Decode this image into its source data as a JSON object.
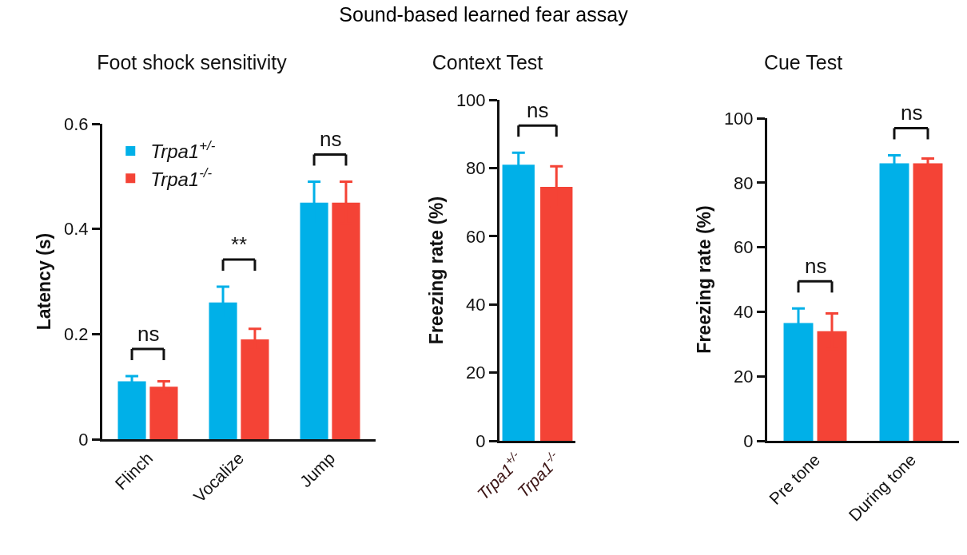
{
  "chart_data": [
    {
      "type": "bar",
      "title": "Sound-based learned fear assay",
      "subtitle": "Foot shock sensitivity",
      "ylabel": "Latency (s)",
      "categories": [
        "Flinch",
        "Vocalize",
        "Jump"
      ],
      "series": [
        {
          "name": "Trpa1$^{+/-}$",
          "color": "#00b0e8",
          "values": [
            0.11,
            0.26,
            0.45
          ],
          "errors": [
            0.01,
            0.03,
            0.04
          ]
        },
        {
          "name": "Trpa1$^{-/-}$",
          "color": "#f44336",
          "values": [
            0.1,
            0.19,
            0.45
          ],
          "errors": [
            0.01,
            0.02,
            0.04
          ]
        }
      ],
      "ylim": [
        0,
        0.6
      ],
      "yticks": [
        0,
        0.2,
        0.4,
        0.6
      ],
      "grid": false,
      "legend": "top left",
      "annotations": [
        "ns",
        "**",
        "ns"
      ]
    },
    {
      "type": "bar",
      "title": "Context Test",
      "ylabel": "Freezing rate (%)",
      "categories": [
        "Trpa1$^{+/-}$",
        "Trpa1$^{-/-}$"
      ],
      "values": [
        81,
        74.5
      ],
      "errors": [
        3.5,
        6
      ],
      "colors": [
        "#00b0e8",
        "#f44336"
      ],
      "ylim": [
        0,
        100
      ],
      "yticks": [
        0,
        20,
        40,
        60,
        80,
        100
      ],
      "grid": false,
      "annotations": [
        "ns"
      ]
    },
    {
      "type": "bar",
      "title": "Cue Test",
      "ylabel": "Freezing rate (%)",
      "categories": [
        "Pre tone",
        "During tone"
      ],
      "series": [
        {
          "color": "#00b0e8",
          "values": [
            36.5,
            86
          ],
          "errors": [
            4.5,
            2.5
          ]
        },
        {
          "color": "#f44336",
          "values": [
            34,
            86
          ],
          "errors": [
            5.5,
            1.5
          ]
        }
      ],
      "ylim": [
        0,
        100
      ],
      "yticks": [
        0,
        20,
        40,
        60,
        80,
        100
      ],
      "grid": false,
      "annotations": [
        "ns",
        "ns"
      ]
    }
  ]
}
